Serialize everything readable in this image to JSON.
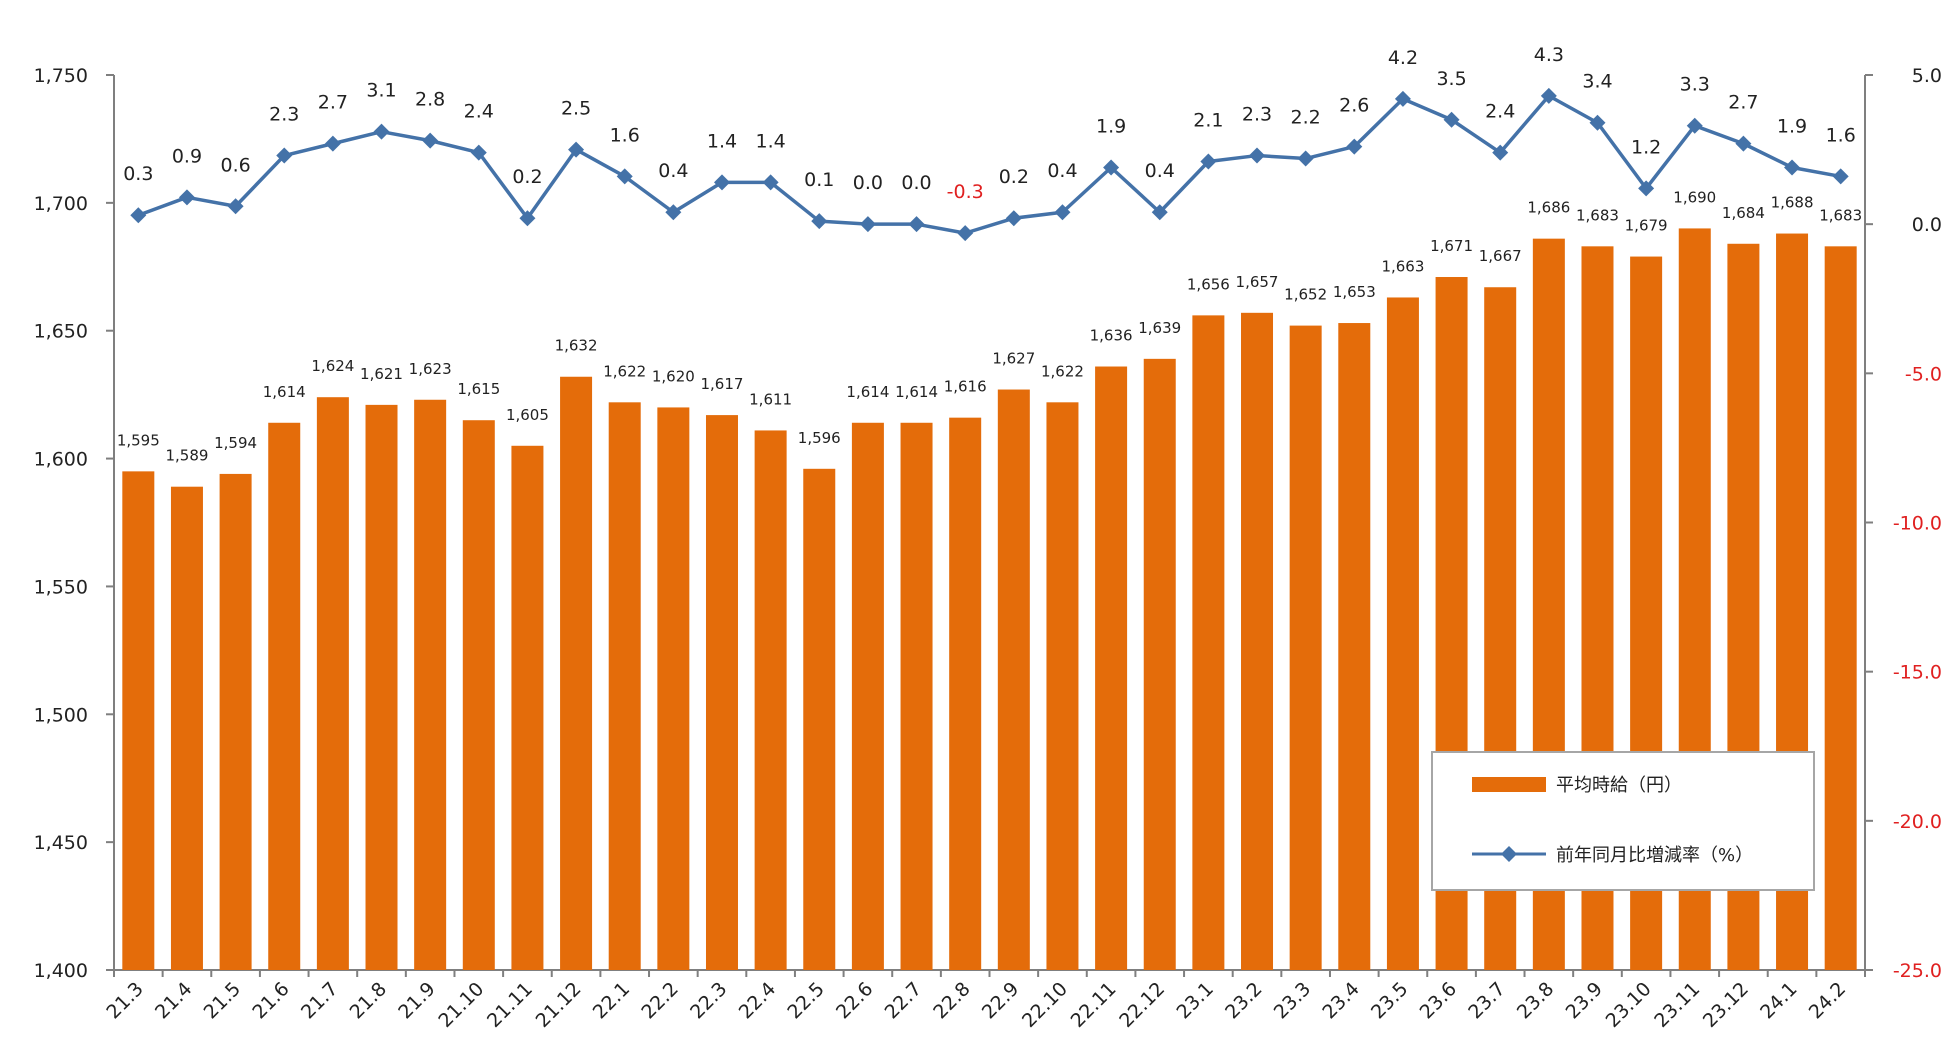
{
  "chart_data": {
    "type": "bar+line",
    "title": "",
    "categories": [
      "21.3",
      "21.4",
      "21.5",
      "21.6",
      "21.7",
      "21.8",
      "21.9",
      "21.10",
      "21.11",
      "21.12",
      "22.1",
      "22.2",
      "22.3",
      "22.4",
      "22.5",
      "22.6",
      "22.7",
      "22.8",
      "22.9",
      "22.10",
      "22.11",
      "22.12",
      "23.1",
      "23.2",
      "23.3",
      "23.4",
      "23.5",
      "23.6",
      "23.7",
      "23.8",
      "23.9",
      "23.10",
      "23.11",
      "23.12",
      "24.1",
      "24.2"
    ],
    "series": [
      {
        "name": "平均時給（円）",
        "type": "bar",
        "axis": "left",
        "color": "#E46C0A",
        "values": [
          1595,
          1589,
          1594,
          1614,
          1624,
          1621,
          1623,
          1615,
          1605,
          1632,
          1622,
          1620,
          1617,
          1611,
          1596,
          1614,
          1614,
          1616,
          1627,
          1622,
          1636,
          1639,
          1656,
          1657,
          1652,
          1653,
          1663,
          1671,
          1667,
          1686,
          1683,
          1679,
          1690,
          1684,
          1688,
          1683
        ],
        "labels": [
          "1,595",
          "1,589",
          "1,594",
          "1,614",
          "1,624",
          "1,621",
          "1,623",
          "1,615",
          "1,605",
          "1,632",
          "1,622",
          "1,620",
          "1,617",
          "1,611",
          "1,596",
          "1,614",
          "1,614",
          "1,616",
          "1,627",
          "1,622",
          "1,636",
          "1,639",
          "1,656",
          "1,657",
          "1,652",
          "1,653",
          "1,663",
          "1,671",
          "1,667",
          "1,686",
          "1,683",
          "1,679",
          "1,690",
          "1,684",
          "1,688",
          "1,683"
        ]
      },
      {
        "name": "前年同月比増減率（%）",
        "type": "line",
        "axis": "right",
        "color": "#4472A8",
        "values": [
          0.3,
          0.9,
          0.6,
          2.3,
          2.7,
          3.1,
          2.8,
          2.4,
          0.2,
          2.5,
          1.6,
          0.4,
          1.4,
          1.4,
          0.1,
          0.0,
          0.0,
          -0.3,
          0.2,
          0.4,
          1.9,
          0.4,
          2.1,
          2.3,
          2.2,
          2.6,
          4.2,
          3.5,
          2.4,
          4.3,
          3.4,
          1.2,
          3.3,
          2.7,
          1.9,
          1.6
        ],
        "labels": [
          "0.3",
          "0.9",
          "0.6",
          "2.3",
          "2.7",
          "3.1",
          "2.8",
          "2.4",
          "0.2",
          "2.5",
          "1.6",
          "0.4",
          "1.4",
          "1.4",
          "0.1",
          "0.0",
          "0.0",
          "-0.3",
          "0.2",
          "0.4",
          "1.9",
          "0.4",
          "2.1",
          "2.3",
          "2.2",
          "2.6",
          "4.2",
          "3.5",
          "2.4",
          "4.3",
          "3.4",
          "1.2",
          "3.3",
          "2.7",
          "1.9",
          "1.6"
        ]
      }
    ],
    "y_left": {
      "min": 1400,
      "max": 1750,
      "ticks": [
        "1,400",
        "1,450",
        "1,500",
        "1,550",
        "1,600",
        "1,650",
        "1,700",
        "1,750"
      ]
    },
    "y_right": {
      "min": -25,
      "max": 5,
      "ticks": [
        "5.0",
        "0.0",
        "-5.0",
        "-10.0",
        "-15.0",
        "-20.0",
        "-25.0"
      ]
    },
    "negative_color": "#E02020",
    "legend": {
      "position": "bottom-right",
      "items": [
        {
          "label": "平均時給（円）"
        },
        {
          "label": "前年同月比増減率（%）"
        }
      ]
    },
    "grid": false
  }
}
